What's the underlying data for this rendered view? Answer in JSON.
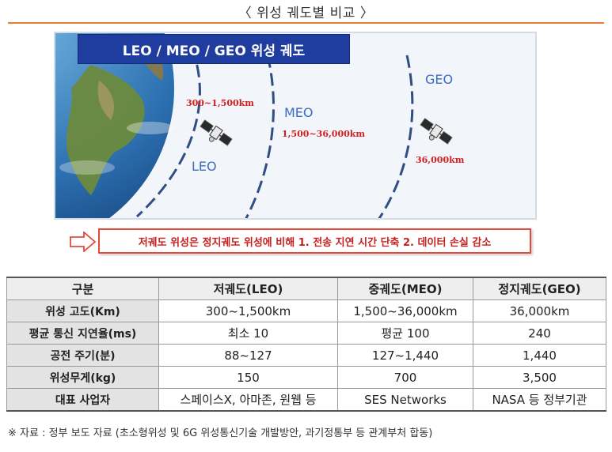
{
  "title": "〈 위성 궤도별 비교 〉",
  "figure": {
    "banner": "LEO / MEO / GEO 위성 궤도",
    "leo": {
      "name": "LEO",
      "altitude": "300~1,500km"
    },
    "meo": {
      "name": "MEO",
      "altitude": "1,500~36,000km"
    },
    "geo": {
      "name": "GEO",
      "altitude": "36,000km"
    }
  },
  "callout": "저궤도 위성은 정지궤도 위성에 비해 1. 전송 지연 시간 단축 2. 데이터 손실 감소",
  "table": {
    "headers": [
      "구분",
      "저궤도(LEO)",
      "중궤도(MEO)",
      "정지궤도(GEO)"
    ],
    "rows": [
      {
        "label": "위성 고도(Km)",
        "values": [
          "300~1,500km",
          "1,500~36,000km",
          "36,000km"
        ]
      },
      {
        "label": "평균 통신 지연율(ms)",
        "values": [
          "최소 10",
          "평균 100",
          "240"
        ]
      },
      {
        "label": "공전 주기(분)",
        "values": [
          "88~127",
          "127~1,440",
          "1,440"
        ]
      },
      {
        "label": "위성무게(kg)",
        "values": [
          "150",
          "700",
          "3,500"
        ]
      },
      {
        "label": "대표 사업자",
        "values": [
          "스페이스X, 아마존, 원웹 등",
          "SES Networks",
          "NASA 등 정부기관"
        ]
      }
    ]
  },
  "source": "※ 자료 : 정부 보도 자료 (초소형위성 및 6G 위성통신기술 개발방안, 과기정통부 등 관계부처 합동)",
  "colors": {
    "accent": "#e67e3a",
    "banner": "#1f3d9e",
    "orbit": "#2f4f84",
    "altitude": "#d02020"
  }
}
